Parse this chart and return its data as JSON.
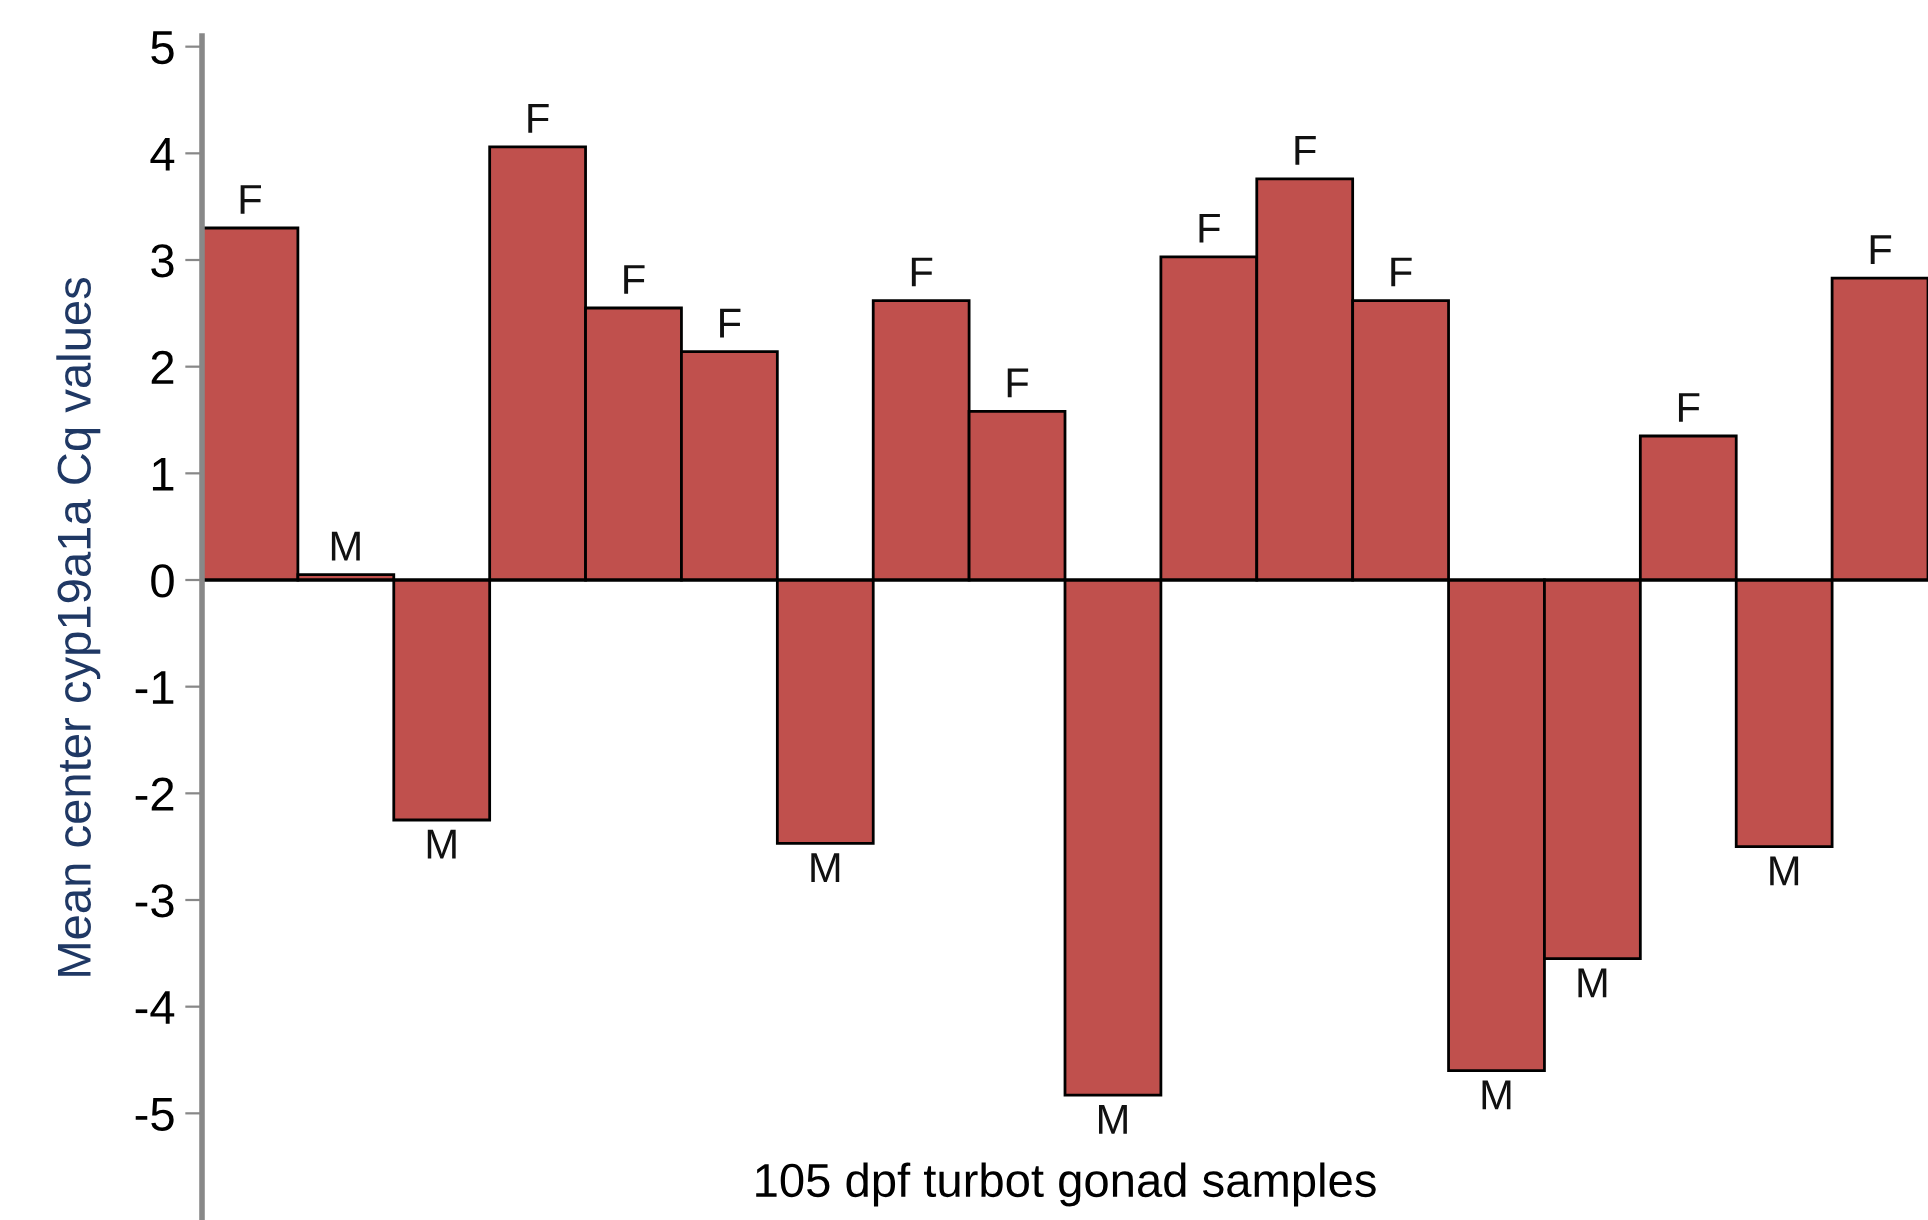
{
  "chart_data": {
    "type": "bar",
    "xlabel": "105 dpf turbot gonad samples",
    "ylabel": "Mean center cyp19a1a Cq values",
    "categories": [
      null,
      null,
      null,
      null,
      null,
      null,
      null,
      null,
      null,
      null,
      null,
      null,
      null,
      null,
      null,
      null,
      null,
      null
    ],
    "values": [
      3.3,
      0.05,
      -2.25,
      4.06,
      2.55,
      2.14,
      -2.47,
      2.62,
      1.58,
      -4.83,
      3.03,
      3.76,
      2.62,
      -4.6,
      -3.55,
      1.35,
      -2.5,
      2.83
    ],
    "value_labels": [
      "F",
      "M",
      "M",
      "F",
      "F",
      "F",
      "M",
      "F",
      "F",
      "M",
      "F",
      "F",
      "F",
      "M",
      "M",
      "F",
      "M",
      "F"
    ],
    "color": "#c0504d",
    "ylim": [
      -6,
      5.1
    ],
    "yticks": [
      -5,
      -4,
      -3,
      -2,
      -1,
      0,
      1,
      2,
      3,
      4,
      5
    ],
    "ref_lines": [
      {
        "axis": "y",
        "value": 0,
        "color": "#000000",
        "line_style": "solid"
      }
    ],
    "legend": false
  }
}
